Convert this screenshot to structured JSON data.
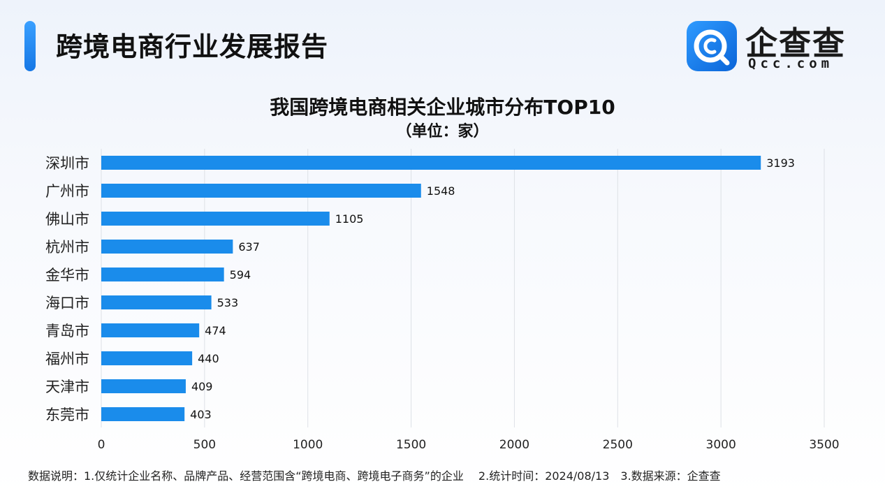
{
  "header": {
    "title": "跨境电商行业发展报告",
    "logo_name": "企查查",
    "logo_domain": "Qcc.com"
  },
  "colors": {
    "bar": "#1a8ceb",
    "accent": "#1677e5"
  },
  "chart_data": {
    "type": "bar",
    "orientation": "horizontal",
    "title": "我国跨境电商相关企业城市分布TOP10",
    "subtitle": "（单位：家）",
    "categories": [
      "深圳市",
      "广州市",
      "佛山市",
      "杭州市",
      "金华市",
      "海口市",
      "青岛市",
      "福州市",
      "天津市",
      "东莞市"
    ],
    "values": [
      3193,
      1548,
      1105,
      637,
      594,
      533,
      474,
      440,
      409,
      403
    ],
    "xlim": [
      0,
      3500
    ],
    "xticks": [
      0,
      500,
      1000,
      1500,
      2000,
      2500,
      3000,
      3500
    ],
    "grid": true
  },
  "footnote": "数据说明：1.仅统计企业名称、品牌产品、经营范围含“跨境电商、跨境电子商务”的企业　 2.统计时间：2024/08/13　3.数据来源：企查查"
}
